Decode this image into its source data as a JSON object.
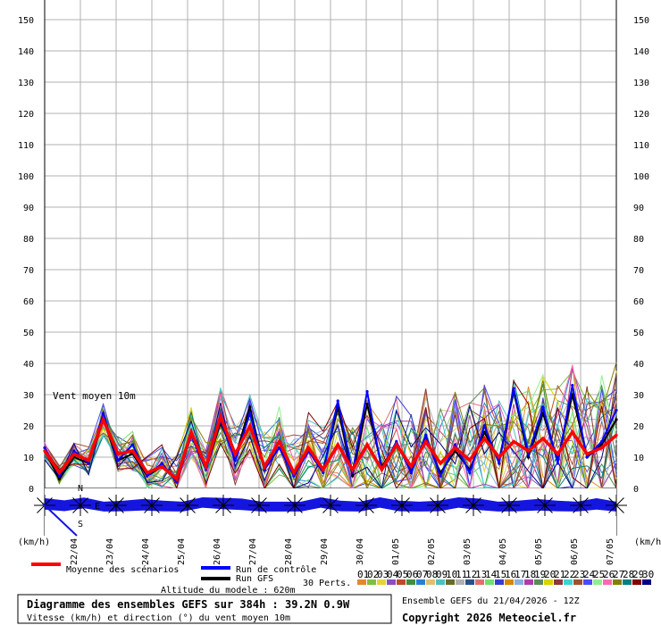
{
  "chart_data": {
    "type": "line",
    "ylim": [
      0,
      150
    ],
    "yticks": [
      0,
      10,
      20,
      30,
      40,
      50,
      60,
      70,
      80,
      90,
      100,
      110,
      120,
      130,
      140,
      150
    ],
    "x_date_labels": [
      "22/04",
      "23/04",
      "24/04",
      "25/04",
      "26/04",
      "27/04",
      "28/04",
      "29/04",
      "30/04",
      "01/05",
      "02/05",
      "03/05",
      "04/05",
      "05/05",
      "06/05",
      "07/05"
    ],
    "unit_left": "(km/h)",
    "unit_right": "(km/h)",
    "panel_label": "Vent moyen 10m",
    "compass": {
      "n": "N",
      "e": "E",
      "s": "S"
    },
    "series": [
      {
        "name": "Moyenne des scénarios",
        "color": "#ff0000",
        "values": [
          12,
          5,
          11,
          9,
          22,
          11,
          12,
          5,
          7,
          3,
          18,
          7,
          23,
          11,
          20,
          7,
          15,
          5,
          13,
          6,
          14,
          6,
          14,
          6,
          14,
          7,
          15,
          8,
          13,
          9,
          16,
          10,
          15,
          12,
          16,
          11,
          18,
          11,
          13,
          17
        ]
      },
      {
        "name": "Run de contrôle",
        "color": "#0000ff",
        "values": [
          13,
          4,
          12,
          8,
          24,
          9,
          14,
          4,
          8,
          2,
          17,
          6,
          22,
          9,
          24,
          6,
          13,
          4,
          12,
          5,
          28,
          5,
          31,
          6,
          15,
          5,
          17,
          4,
          14,
          5,
          20,
          8,
          32,
          11,
          26,
          8,
          33,
          10,
          15,
          25
        ]
      },
      {
        "name": "Run GFS",
        "color": "#000000",
        "values": [
          12,
          3,
          10,
          8,
          23,
          9,
          11,
          4,
          7,
          3,
          17,
          6,
          21,
          10,
          26,
          6,
          15,
          4,
          12,
          6,
          26,
          4,
          27,
          7,
          14,
          6,
          16,
          5,
          12,
          6,
          18,
          9,
          31,
          10,
          24,
          9,
          30,
          10,
          14,
          22
        ]
      }
    ],
    "ensemble": {
      "label": "30 Perts.",
      "member_ids": [
        "01",
        "02",
        "03",
        "04",
        "05",
        "06",
        "07",
        "08",
        "09",
        "10",
        "11",
        "12",
        "13",
        "14",
        "15",
        "16",
        "17",
        "18",
        "19",
        "20",
        "21",
        "22",
        "23",
        "24",
        "25",
        "26",
        "27",
        "28",
        "29",
        "30"
      ],
      "member_colors": [
        "#e08a2c",
        "#7fbf3f",
        "#e6d23a",
        "#8a4fbf",
        "#c04a2a",
        "#3f8f3f",
        "#2a7fd4",
        "#e0c070",
        "#4fbfbf",
        "#6a6a2a",
        "#b0b0b0",
        "#2a4f8a",
        "#e07070",
        "#70e070",
        "#3a3ad4",
        "#d48a00",
        "#8ab0e0",
        "#b03ab0",
        "#5a8a5a",
        "#d4d400",
        "#8a3a3a",
        "#3ad4d4",
        "#a0522d",
        "#4a4aff",
        "#90ee90",
        "#ff69b4",
        "#808000",
        "#008080",
        "#800000",
        "#000080"
      ]
    },
    "directions_deg": [
      290,
      320,
      250,
      270,
      280,
      260,
      280,
      270,
      275,
      265,
      285,
      270,
      270,
      270,
      275,
      280,
      270,
      275,
      280,
      270,
      280,
      275,
      285,
      270,
      280,
      260,
      280,
      270,
      290,
      270
    ]
  },
  "legend": {
    "mean_label": "Moyenne des scénarios",
    "control_label": "Run de contrôle",
    "gfs_label": "Run GFS",
    "perts_label": "30 Perts.",
    "altitude_label": "Altitude du modele : 620m"
  },
  "footer": {
    "title": "Diagramme des ensembles GEFS sur 384h : 39.2N 0.9W",
    "subtitle": "Vitesse (km/h) et direction (°) du vent moyen 10m",
    "run_label": "Ensemble GEFS du 21/04/2026 - 12Z",
    "copyright": "Copyright 2026 Meteociel.fr"
  }
}
